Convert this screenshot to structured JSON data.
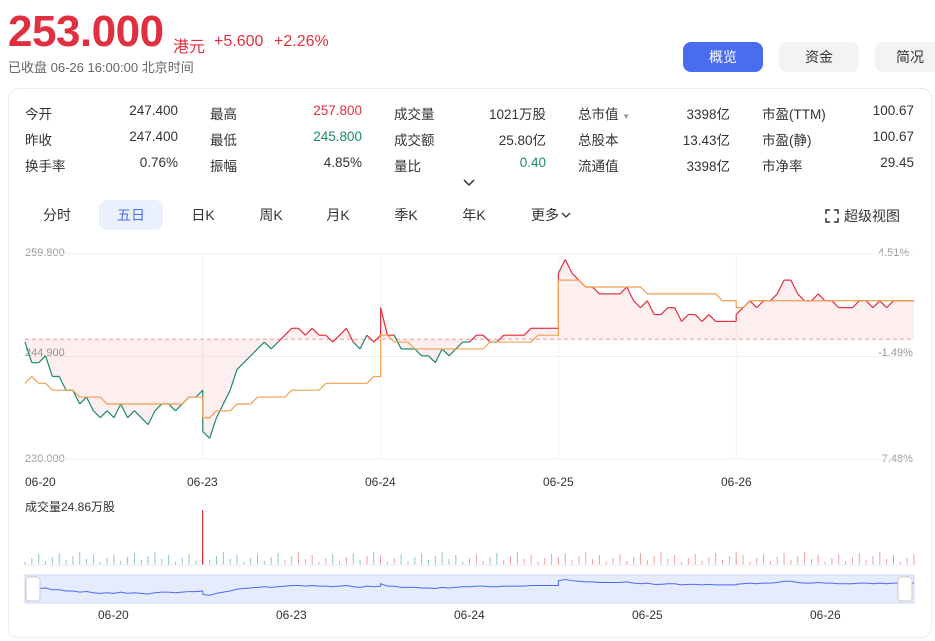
{
  "header": {
    "price": "253.000",
    "currency": "港元",
    "change": "+5.600",
    "change_pct": "+2.26%",
    "status": "已收盘  06-26 16:00:00  北京时间"
  },
  "nav": {
    "overview": "概览",
    "funds": "资金",
    "profile": "简况"
  },
  "stats": {
    "open_label": "今开",
    "open": "247.400",
    "high_label": "最高",
    "high": "257.800",
    "volume_label": "成交量",
    "volume": "1021万股",
    "mktcap_label": "总市值",
    "mktcap": "3398亿",
    "pe_ttm_label": "市盈(TTM)",
    "pe_ttm": "100.67",
    "prev_close_label": "昨收",
    "prev_close": "247.400",
    "low_label": "最低",
    "low": "245.800",
    "turnover_label": "成交额",
    "turnover": "25.80亿",
    "total_shares_label": "总股本",
    "total_shares": "13.43亿",
    "pe_static_label": "市盈(静)",
    "pe_static": "100.67",
    "turnover_rate_label": "换手率",
    "turnover_rate": "0.76%",
    "amplitude_label": "振幅",
    "amplitude": "4.85%",
    "vol_ratio_label": "量比",
    "vol_ratio": "0.40",
    "float_cap_label": "流通值",
    "float_cap": "3398亿",
    "pb_label": "市净率",
    "pb": "29.45"
  },
  "tabs": {
    "intraday": "分时",
    "five_day": "五日",
    "daily": "日K",
    "weekly": "周K",
    "monthly": "月K",
    "quarterly": "季K",
    "yearly": "年K",
    "more": "更多",
    "super_view": "超级视图"
  },
  "colors": {
    "up": "#e02f3e",
    "down": "#1b8a6b",
    "avg_line": "#f0a050",
    "accent": "#4a6df0"
  },
  "chart_data": {
    "type": "line",
    "y_ticks": [
      "259.800",
      "244.900",
      "230.000"
    ],
    "pct_ticks": [
      "4.51%",
      "-1.49%",
      "-7.48%"
    ],
    "ylim": [
      230.0,
      259.8
    ],
    "prev_close": 247.4,
    "x_dates": [
      "06-20",
      "06-23",
      "06-24",
      "06-25",
      "06-26"
    ],
    "volume_label": "成交量24.86万股",
    "nav_dates": [
      "06-20",
      "06-23",
      "06-24",
      "06-25",
      "06-26"
    ],
    "series": [
      {
        "day": "06-20",
        "price": [
          247,
          244,
          244,
          245,
          242,
          242,
          240,
          240,
          238,
          239,
          237,
          236,
          237,
          236,
          238,
          236,
          237,
          236,
          235,
          237,
          238,
          238,
          237,
          238,
          239,
          239,
          240
        ],
        "avg": [
          241,
          242,
          241,
          241,
          240,
          240,
          240,
          240,
          239,
          239,
          239,
          239,
          238,
          238,
          238,
          238,
          238,
          238,
          238,
          238,
          238,
          238,
          238,
          238,
          239,
          239,
          239
        ]
      },
      {
        "day": "06-23",
        "price": [
          234,
          233,
          236,
          238,
          240,
          243,
          244,
          245,
          246,
          247,
          246,
          247,
          248,
          249,
          249,
          248,
          249,
          248,
          248,
          247,
          248,
          249,
          247,
          246,
          248,
          247,
          248
        ],
        "avg": [
          236,
          236,
          237,
          237,
          237,
          238,
          238,
          238,
          239,
          239,
          239,
          239,
          239,
          240,
          240,
          240,
          240,
          240,
          241,
          241,
          241,
          241,
          241,
          241,
          241,
          242,
          242
        ]
      },
      {
        "day": "06-24",
        "price": [
          252,
          248,
          248,
          246,
          246,
          246,
          245,
          245,
          244,
          246,
          245,
          246,
          247,
          247,
          248,
          248,
          247,
          247,
          248,
          248,
          248,
          248,
          249,
          249,
          249,
          249,
          249
        ],
        "avg": [
          248,
          248,
          247,
          247,
          247,
          246,
          246,
          246,
          246,
          246,
          246,
          246,
          246,
          246,
          246,
          246,
          247,
          247,
          247,
          247,
          247,
          247,
          247,
          248,
          248,
          248,
          248
        ]
      },
      {
        "day": "06-25",
        "price": [
          257,
          259,
          257,
          256,
          255,
          255,
          254,
          254,
          254,
          254,
          255,
          253,
          252,
          253,
          251,
          251,
          252,
          252,
          250,
          251,
          251,
          250,
          251,
          250,
          250,
          250,
          250
        ],
        "avg": [
          256,
          256,
          256,
          256,
          255,
          255,
          255,
          255,
          255,
          255,
          255,
          255,
          255,
          254,
          254,
          254,
          254,
          254,
          254,
          254,
          254,
          254,
          254,
          254,
          253,
          253,
          253
        ]
      },
      {
        "day": "06-26",
        "price": [
          251,
          252,
          253,
          252,
          253,
          253,
          254,
          256,
          256,
          254,
          253,
          253,
          254,
          253,
          253,
          252,
          252,
          252,
          253,
          253,
          252,
          253,
          252,
          253,
          253,
          253,
          253
        ],
        "avg": [
          252,
          252,
          253,
          253,
          253,
          253,
          253,
          253,
          253,
          253,
          253,
          253,
          253,
          253,
          253,
          253,
          253,
          253,
          253,
          253,
          253,
          253,
          253,
          253,
          253,
          253,
          253
        ]
      }
    ]
  }
}
